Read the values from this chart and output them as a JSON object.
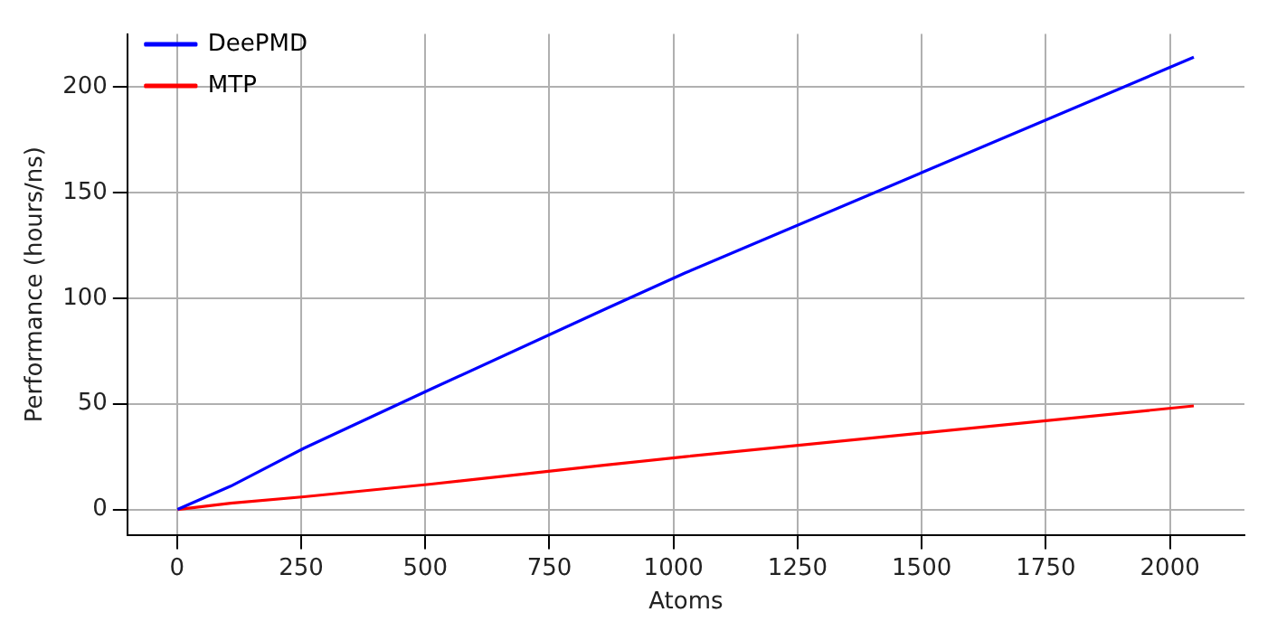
{
  "chart_data": {
    "type": "line",
    "xlabel": "Atoms",
    "ylabel": "Performance (hours/ns)",
    "series": [
      {
        "name": "DeePMD",
        "color": "#0000ff",
        "x": [
          1,
          108,
          256,
          512,
          864,
          1024,
          2048
        ],
        "values": [
          0,
          11,
          29,
          57,
          95,
          112,
          214
        ]
      },
      {
        "name": "MTP",
        "color": "#ff0000",
        "x": [
          1,
          108,
          256,
          512,
          864,
          1024,
          2048
        ],
        "values": [
          0,
          3,
          6,
          12,
          21,
          25,
          49
        ]
      }
    ],
    "xlim": [
      -100,
      2150
    ],
    "xticks": [
      0,
      250,
      500,
      750,
      1000,
      1250,
      1500,
      1750,
      2000
    ],
    "ylim": [
      -12,
      225
    ],
    "yticks": [
      0,
      50,
      100,
      150,
      200
    ],
    "grid": true,
    "legend": "top left",
    "marker": "none",
    "line_style": "solid"
  }
}
